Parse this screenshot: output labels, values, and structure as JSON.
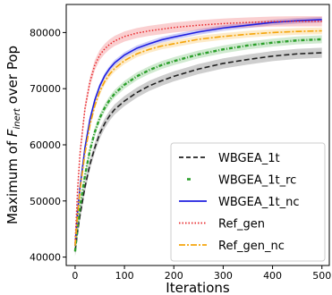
{
  "chart_data": {
    "type": "line",
    "xlabel": "Iterations",
    "ylabel": "Maximum of F_inert over Pop",
    "ylabel_parts": {
      "pre": "Maximum of ",
      "sym": "F",
      "sub": "inert",
      "post": " over Pop"
    },
    "xlim": [
      -18,
      515
    ],
    "ylim": [
      38500,
      85000
    ],
    "xticks": [
      0,
      100,
      200,
      300,
      400,
      500
    ],
    "yticks": [
      40000,
      50000,
      60000,
      70000,
      80000
    ],
    "xtick_labels": [
      "0",
      "100",
      "200",
      "300",
      "400",
      "500"
    ],
    "ytick_labels": [
      "40000",
      "50000",
      "60000",
      "70000",
      "80000"
    ],
    "legend_position": "lower-right",
    "grid": false,
    "series": [
      {
        "name": "WBGEA_1t",
        "color": "#222222",
        "style": "dashed",
        "band": 900,
        "points": [
          [
            0,
            41000
          ],
          [
            5,
            44500
          ],
          [
            10,
            47500
          ],
          [
            20,
            52500
          ],
          [
            30,
            56500
          ],
          [
            40,
            59500
          ],
          [
            50,
            62000
          ],
          [
            60,
            63800
          ],
          [
            70,
            65200
          ],
          [
            80,
            66300
          ],
          [
            100,
            67800
          ],
          [
            125,
            69300
          ],
          [
            150,
            70500
          ],
          [
            175,
            71400
          ],
          [
            200,
            72200
          ],
          [
            250,
            73500
          ],
          [
            300,
            74500
          ],
          [
            350,
            75200
          ],
          [
            400,
            75800
          ],
          [
            450,
            76200
          ],
          [
            500,
            76400
          ]
        ]
      },
      {
        "name": "WBGEA_1t_rc",
        "color": "#2ca02c",
        "style": "dashdot-green",
        "band": 700,
        "points": [
          [
            0,
            41000
          ],
          [
            5,
            45500
          ],
          [
            10,
            49000
          ],
          [
            20,
            54500
          ],
          [
            30,
            59000
          ],
          [
            40,
            62300
          ],
          [
            50,
            64800
          ],
          [
            60,
            66600
          ],
          [
            70,
            68000
          ],
          [
            80,
            69100
          ],
          [
            100,
            70700
          ],
          [
            125,
            72200
          ],
          [
            150,
            73300
          ],
          [
            175,
            74200
          ],
          [
            200,
            74900
          ],
          [
            250,
            76100
          ],
          [
            300,
            77000
          ],
          [
            350,
            77700
          ],
          [
            400,
            78200
          ],
          [
            450,
            78600
          ],
          [
            500,
            78800
          ]
        ]
      },
      {
        "name": "WBGEA_1t_nc",
        "color": "#1f1fdf",
        "style": "solid",
        "band": 500,
        "points": [
          [
            0,
            42000
          ],
          [
            5,
            48000
          ],
          [
            10,
            52500
          ],
          [
            20,
            59500
          ],
          [
            30,
            64500
          ],
          [
            40,
            68000
          ],
          [
            50,
            70500
          ],
          [
            60,
            72300
          ],
          [
            70,
            73600
          ],
          [
            80,
            74600
          ],
          [
            100,
            76000
          ],
          [
            125,
            77200
          ],
          [
            150,
            78000
          ],
          [
            175,
            78700
          ],
          [
            200,
            79200
          ],
          [
            250,
            80100
          ],
          [
            300,
            80800
          ],
          [
            350,
            81300
          ],
          [
            400,
            81800
          ],
          [
            450,
            82100
          ],
          [
            500,
            82300
          ]
        ]
      },
      {
        "name": "Ref_gen",
        "color": "#e8262a",
        "style": "dotted",
        "band": 900,
        "points": [
          [
            0,
            42500
          ],
          [
            5,
            52000
          ],
          [
            10,
            58500
          ],
          [
            20,
            66500
          ],
          [
            30,
            71200
          ],
          [
            40,
            74200
          ],
          [
            50,
            76000
          ],
          [
            60,
            77100
          ],
          [
            70,
            77900
          ],
          [
            80,
            78500
          ],
          [
            100,
            79300
          ],
          [
            125,
            79900
          ],
          [
            150,
            80300
          ],
          [
            175,
            80600
          ],
          [
            200,
            80900
          ],
          [
            250,
            81300
          ],
          [
            300,
            81600
          ],
          [
            350,
            81800
          ],
          [
            400,
            81950
          ],
          [
            450,
            82000
          ],
          [
            500,
            82000
          ]
        ]
      },
      {
        "name": "Ref_gen_nc",
        "color": "#f5a50a",
        "style": "dashdot",
        "band": 600,
        "points": [
          [
            0,
            42000
          ],
          [
            5,
            47500
          ],
          [
            10,
            52000
          ],
          [
            20,
            58500
          ],
          [
            30,
            63500
          ],
          [
            40,
            67000
          ],
          [
            50,
            69500
          ],
          [
            60,
            71300
          ],
          [
            70,
            72600
          ],
          [
            80,
            73600
          ],
          [
            100,
            75000
          ],
          [
            125,
            76200
          ],
          [
            150,
            77000
          ],
          [
            175,
            77600
          ],
          [
            200,
            78000
          ],
          [
            250,
            78800
          ],
          [
            300,
            79300
          ],
          [
            350,
            79700
          ],
          [
            400,
            80000
          ],
          [
            450,
            80200
          ],
          [
            500,
            80300
          ]
        ]
      }
    ]
  }
}
